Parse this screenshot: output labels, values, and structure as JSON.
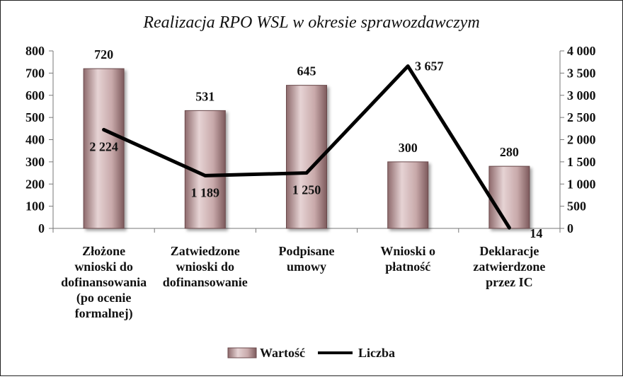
{
  "chart_data": {
    "type": "bar",
    "title": "Realizacja RPO WSL w okresie sprawozdawczym",
    "categories": [
      [
        "Złożone",
        "wnioski do",
        "dofinansowania",
        "(po ocenie",
        "formalnej)"
      ],
      [
        "Zatwiedzone",
        "wnioski do",
        "dofinansowanie"
      ],
      [
        "Podpisane",
        "umowy"
      ],
      [
        "Wnioski o",
        "płatność"
      ],
      [
        "Deklaracje",
        "zatwierdzone",
        "przez IC"
      ]
    ],
    "series": [
      {
        "name": "Wartość",
        "type": "bar",
        "axis": "left",
        "color": "#c4a3a5",
        "values": [
          720,
          531,
          645,
          300,
          280
        ],
        "labels": [
          "720",
          "531",
          "645",
          "300",
          "280"
        ]
      },
      {
        "name": "Liczba",
        "type": "line",
        "axis": "right",
        "color": "#000000",
        "values": [
          2224,
          1189,
          1250,
          3657,
          14
        ],
        "labels": [
          "2 224",
          "1 189",
          "1 250",
          "3 657",
          "14"
        ]
      }
    ],
    "y_left": {
      "range": [
        0,
        800
      ],
      "ticks": [
        0,
        100,
        200,
        300,
        400,
        500,
        600,
        700,
        800
      ],
      "tick_labels": [
        "0",
        "100",
        "200",
        "300",
        "400",
        "500",
        "600",
        "700",
        "800"
      ]
    },
    "y_right": {
      "range": [
        0,
        4000
      ],
      "ticks": [
        0,
        500,
        1000,
        1500,
        2000,
        2500,
        3000,
        3500,
        4000
      ],
      "tick_labels": [
        "0",
        "500",
        "1 000",
        "1 500",
        "2 000",
        "2 500",
        "3 000",
        "3 500",
        "4 000"
      ]
    },
    "grid": false,
    "legend_position": "bottom"
  }
}
